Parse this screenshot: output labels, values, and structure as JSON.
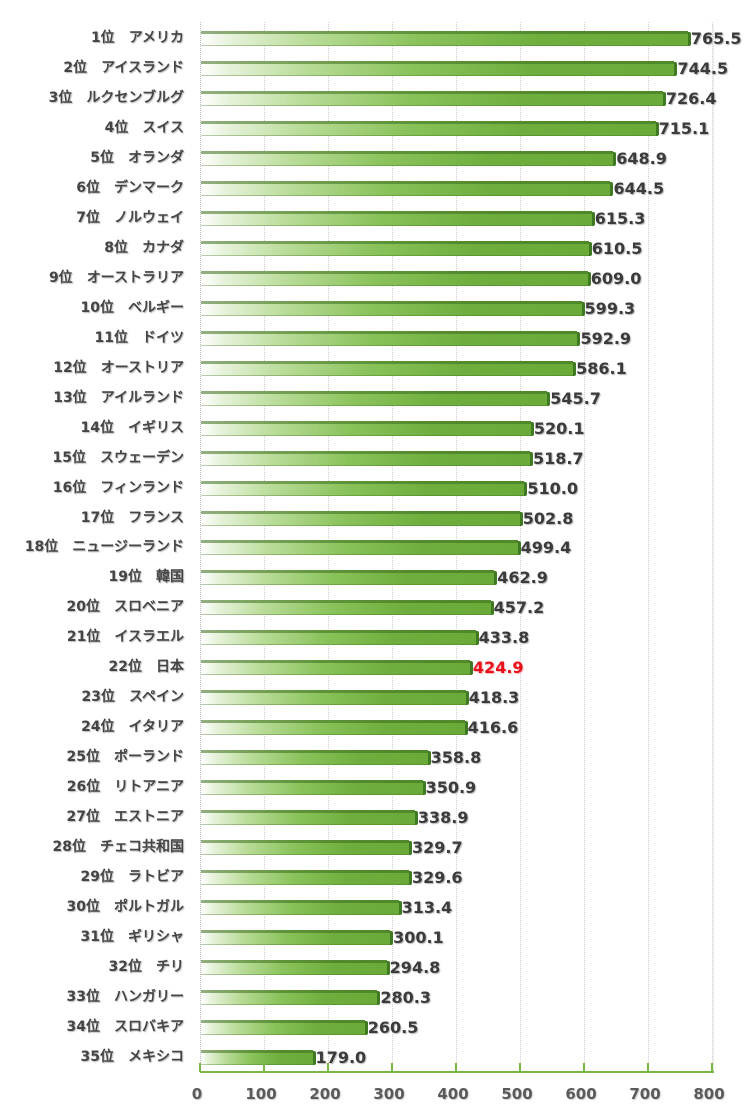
{
  "chart_data": {
    "type": "bar",
    "orientation": "horizontal",
    "title": "",
    "xlabel": "",
    "ylabel": "",
    "xlim": [
      0,
      800
    ],
    "x_ticks": [
      0,
      100,
      200,
      300,
      400,
      500,
      600,
      700,
      800
    ],
    "grid": "vertical dotted",
    "legend": null,
    "highlight_category": "日本",
    "highlight_color": "#e8101a",
    "bar_color": "#6fae3e",
    "categories": [
      {
        "rank": "1位",
        "name": "アメリカ"
      },
      {
        "rank": "2位",
        "name": "アイスランド"
      },
      {
        "rank": "3位",
        "name": "ルクセンブルグ"
      },
      {
        "rank": "4位",
        "name": "スイス"
      },
      {
        "rank": "5位",
        "name": "オランダ"
      },
      {
        "rank": "6位",
        "name": "デンマーク"
      },
      {
        "rank": "7位",
        "name": "ノルウェイ"
      },
      {
        "rank": "8位",
        "name": "カナダ"
      },
      {
        "rank": "9位",
        "name": "オーストラリア"
      },
      {
        "rank": "10位",
        "name": "ベルギー"
      },
      {
        "rank": "11位",
        "name": "ドイツ"
      },
      {
        "rank": "12位",
        "name": "オーストリア"
      },
      {
        "rank": "13位",
        "name": "アイルランド"
      },
      {
        "rank": "14位",
        "name": "イギリス"
      },
      {
        "rank": "15位",
        "name": "スウェーデン"
      },
      {
        "rank": "16位",
        "name": "フィンランド"
      },
      {
        "rank": "17位",
        "name": "フランス"
      },
      {
        "rank": "18位",
        "name": "ニュージーランド"
      },
      {
        "rank": "19位",
        "name": "韓国"
      },
      {
        "rank": "20位",
        "name": "スロベニア"
      },
      {
        "rank": "21位",
        "name": "イスラエル"
      },
      {
        "rank": "22位",
        "name": "日本"
      },
      {
        "rank": "23位",
        "name": "スペイン"
      },
      {
        "rank": "24位",
        "name": "イタリア"
      },
      {
        "rank": "25位",
        "name": "ポーランド"
      },
      {
        "rank": "26位",
        "name": "リトアニア"
      },
      {
        "rank": "27位",
        "name": "エストニア"
      },
      {
        "rank": "28位",
        "name": "チェコ共和国"
      },
      {
        "rank": "29位",
        "name": "ラトビア"
      },
      {
        "rank": "30位",
        "name": "ポルトガル"
      },
      {
        "rank": "31位",
        "name": "ギリシャ"
      },
      {
        "rank": "32位",
        "name": "チリ"
      },
      {
        "rank": "33位",
        "name": "ハンガリー"
      },
      {
        "rank": "34位",
        "name": "スロバキア"
      },
      {
        "rank": "35位",
        "name": "メキシコ"
      }
    ],
    "values": [
      765.5,
      744.5,
      726.4,
      715.1,
      648.9,
      644.5,
      615.3,
      610.5,
      609.0,
      599.3,
      592.9,
      586.1,
      545.7,
      520.1,
      518.7,
      510.0,
      502.8,
      499.4,
      462.9,
      457.2,
      433.8,
      424.9,
      418.3,
      416.6,
      358.8,
      350.9,
      338.9,
      329.7,
      329.6,
      313.4,
      300.1,
      294.8,
      280.3,
      260.5,
      179.0
    ],
    "value_labels": [
      "765.5",
      "744.5",
      "726.4",
      "715.1",
      "648.9",
      "644.5",
      "615.3",
      "610.5",
      "609.0",
      "599.3",
      "592.9",
      "586.1",
      "545.7",
      "520.1",
      "518.7",
      "510.0",
      "502.8",
      "499.4",
      "462.9",
      "457.2",
      "433.8",
      "424.9",
      "418.3",
      "416.6",
      "358.8",
      "350.9",
      "338.9",
      "329.7",
      "329.6",
      "313.4",
      "300.1",
      "294.8",
      "280.3",
      "260.5",
      "179.0"
    ]
  }
}
